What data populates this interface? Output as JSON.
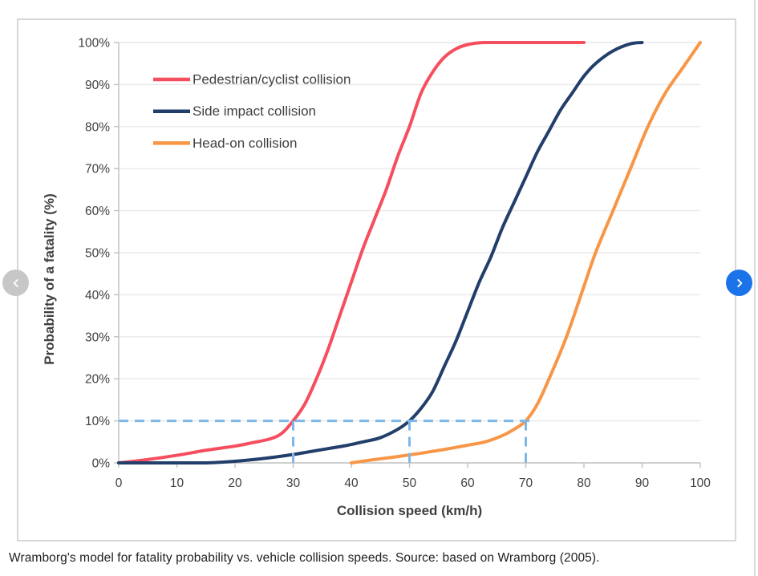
{
  "carousel": {
    "prev_icon": "chevron-left",
    "next_icon": "chevron-right",
    "prev_color": "#c7c7c7",
    "next_color": "#1a73e8"
  },
  "caption": {
    "text": "Wramborg's model for fatality probability vs. vehicle collision speeds. Source: based on Wramborg (2005)."
  },
  "chart_data": {
    "type": "line",
    "title": "",
    "xlabel": "Collision speed (km/h)",
    "ylabel": "Probability of a fatality (%)",
    "xlim": [
      0,
      100
    ],
    "ylim": [
      0,
      100
    ],
    "x_ticks": [
      0,
      10,
      20,
      30,
      40,
      50,
      60,
      70,
      80,
      90,
      100
    ],
    "y_ticks_pct": [
      0,
      10,
      20,
      30,
      40,
      50,
      60,
      70,
      80,
      90,
      100
    ],
    "grid": "horizontal",
    "legend_position": "top-left-inside",
    "axis_text_color": "#404040",
    "grid_color": "#e9e9e9",
    "axis_line_color": "#c0c0c0",
    "series": [
      {
        "name": "Pedestrian/cyclist collision",
        "color": "#f54e5e",
        "x": [
          0,
          5,
          10,
          15,
          20,
          23,
          26,
          28,
          30,
          32,
          34,
          36,
          38,
          40,
          42,
          44,
          46,
          48,
          50,
          52,
          54,
          56,
          58,
          60,
          63,
          70,
          80
        ],
        "y": [
          0,
          0.8,
          1.8,
          3.0,
          4.0,
          4.8,
          5.7,
          7.0,
          10,
          14,
          20,
          27,
          35,
          43,
          51,
          58,
          65,
          73,
          80,
          88,
          93,
          96.5,
          98.5,
          99.5,
          100,
          100,
          100
        ]
      },
      {
        "name": "Side impact collision",
        "color": "#223e6a",
        "x": [
          0,
          5,
          10,
          15,
          18,
          21,
          24,
          27,
          30,
          33,
          36,
          39,
          42,
          45,
          48,
          50,
          52,
          54,
          56,
          58,
          60,
          62,
          64,
          66,
          68,
          70,
          72,
          74,
          76,
          78,
          80,
          82,
          85,
          88,
          90
        ],
        "y": [
          0,
          0,
          0,
          0,
          0.2,
          0.5,
          0.9,
          1.4,
          2.0,
          2.7,
          3.4,
          4.1,
          5.0,
          6.0,
          8.0,
          10,
          13,
          17,
          23,
          29,
          36,
          43,
          49,
          56,
          62,
          68,
          74,
          79,
          84,
          88,
          92,
          95,
          98,
          99.7,
          100
        ]
      },
      {
        "name": "Head-on collision",
        "color": "#f79646",
        "x": [
          40,
          44,
          48,
          52,
          56,
          60,
          63,
          66,
          68,
          70,
          72,
          74,
          77,
          80,
          82,
          85,
          88,
          91,
          94,
          97,
          100
        ],
        "y": [
          0,
          0.8,
          1.5,
          2.3,
          3.2,
          4.2,
          5.0,
          6.5,
          8.0,
          10,
          14,
          20,
          30,
          42,
          50,
          60,
          70,
          80,
          88,
          94,
          100
        ]
      }
    ],
    "guides": {
      "style": "dashed",
      "color": "#7db7ea",
      "horizontal_pct": 10,
      "horizontal_x_range": [
        0,
        70.8
      ],
      "vertical_speeds": [
        30,
        50,
        70
      ]
    }
  }
}
